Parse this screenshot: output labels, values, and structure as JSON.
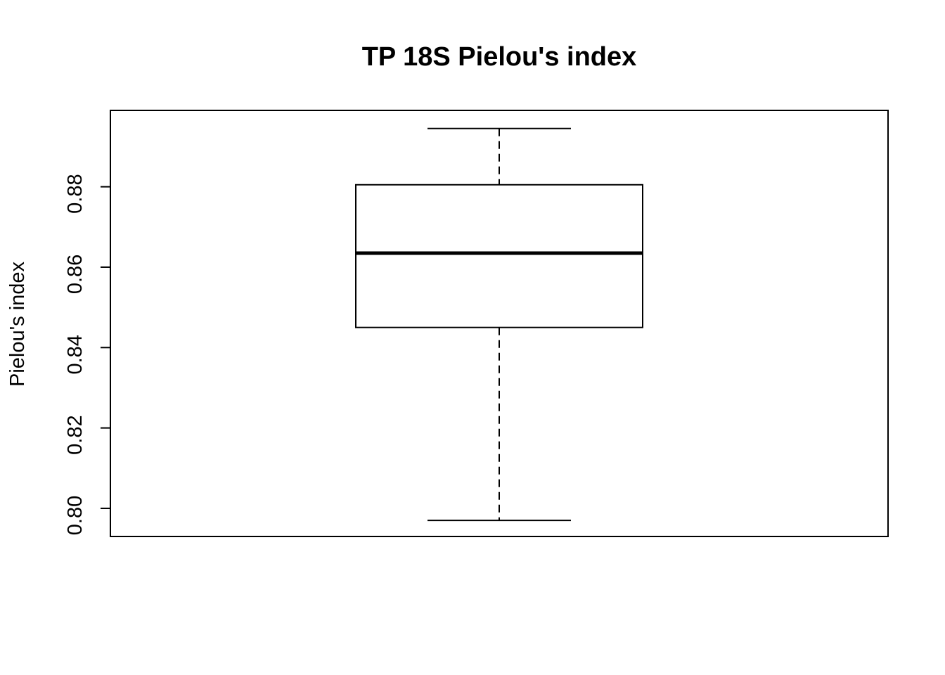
{
  "chart_data": {
    "type": "box",
    "title": "TP 18S Pielou's index",
    "xlabel": "",
    "ylabel": "Pielou's index",
    "ylim": [
      0.793,
      0.899
    ],
    "y_ticks": [
      0.8,
      0.82,
      0.84,
      0.86,
      0.88
    ],
    "y_tick_labels": [
      "0.80",
      "0.82",
      "0.84",
      "0.86",
      "0.88"
    ],
    "box": {
      "min": 0.797,
      "q1": 0.845,
      "median": 0.8635,
      "q3": 0.8805,
      "max": 0.8945
    },
    "grid": false,
    "legend": "none"
  }
}
